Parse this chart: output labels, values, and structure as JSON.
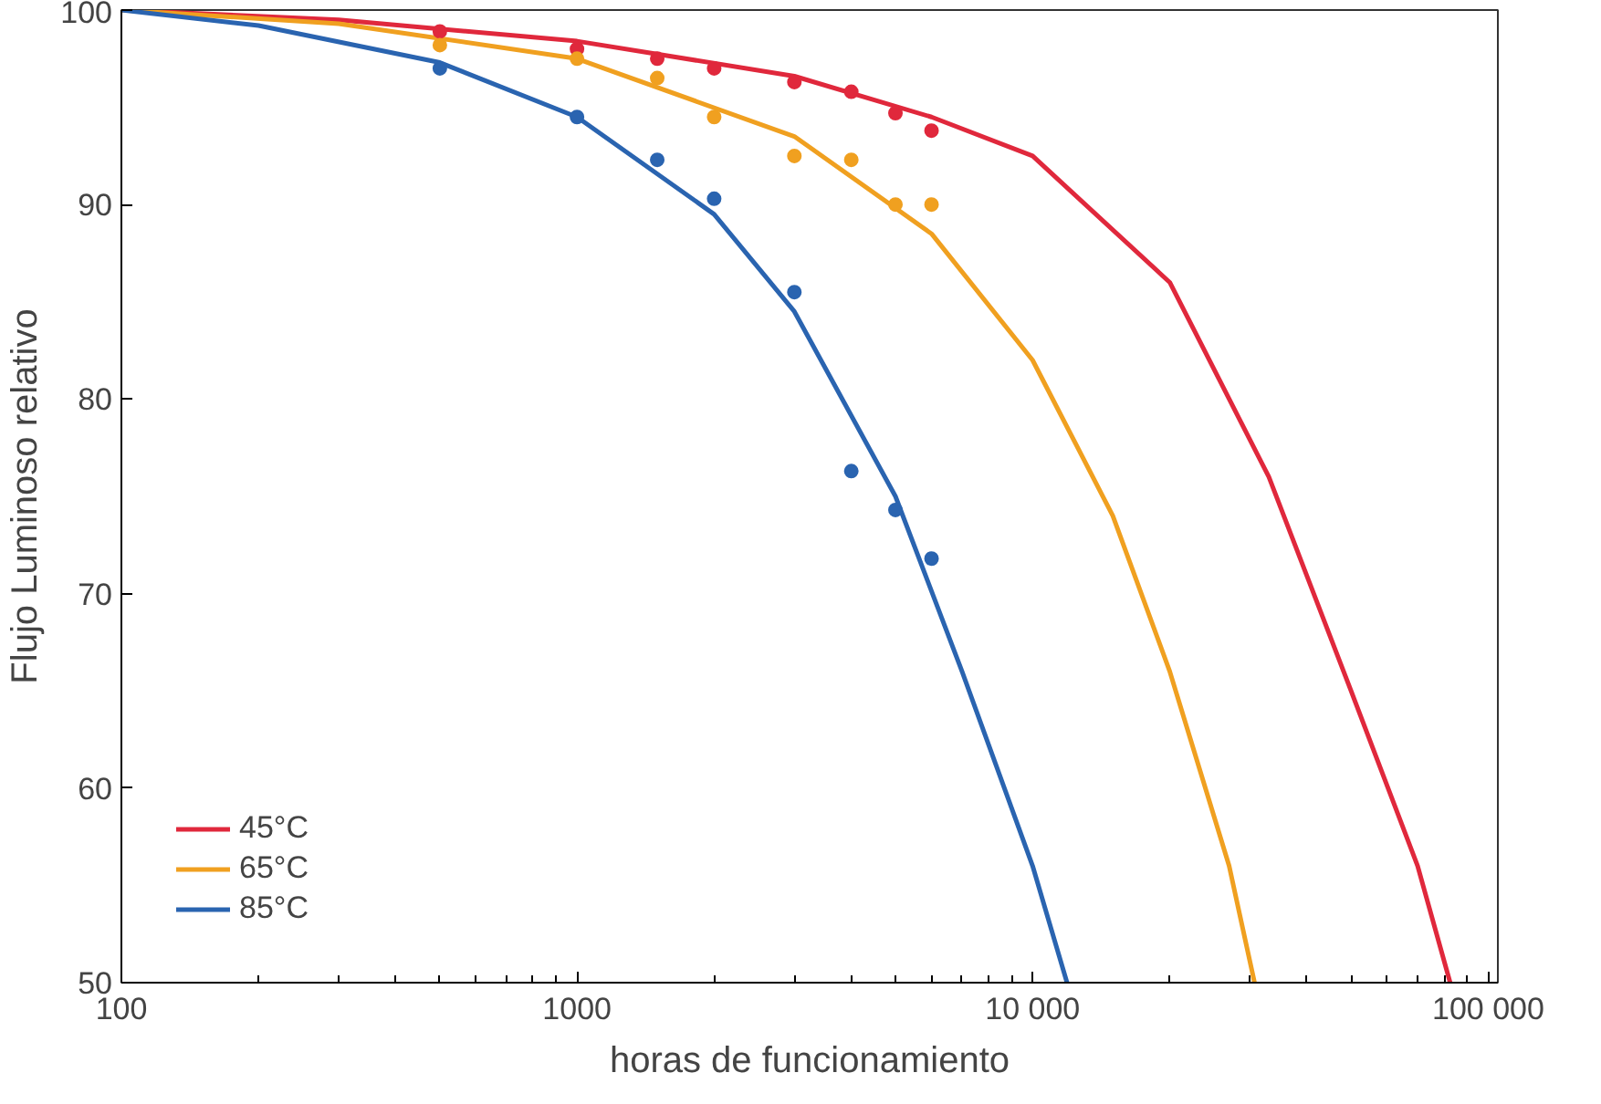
{
  "chart_data": {
    "type": "line",
    "xlabel": "horas de funcionamiento",
    "ylabel": "Flujo Luminoso relativo",
    "log": "x",
    "xlim": [
      100,
      105000
    ],
    "ylim": [
      50,
      100
    ],
    "xticks": [
      {
        "value": 100,
        "label": "100"
      },
      {
        "value": 1000,
        "label": "1000"
      },
      {
        "value": 10000,
        "label": "10 000"
      },
      {
        "value": 100000,
        "label": "100 000"
      }
    ],
    "yticks": [
      50,
      60,
      70,
      80,
      90,
      100
    ],
    "grid": false,
    "legend": "bottom left",
    "marker": "none",
    "series": [
      {
        "name": "45°C",
        "color": "#e0283c",
        "x": [
          100,
          300,
          1000,
          3000,
          6000,
          10000,
          20000,
          33000,
          50000,
          70000,
          82500
        ],
        "values": [
          100,
          99.5,
          98.4,
          96.6,
          94.5,
          92.5,
          86,
          76,
          65,
          56,
          50
        ]
      },
      {
        "name": "65°C",
        "color": "#f0a020",
        "x": [
          100,
          300,
          1000,
          3000,
          6000,
          10000,
          15000,
          20000,
          27000,
          30700
        ],
        "values": [
          100,
          99.3,
          97.5,
          93.5,
          88.5,
          82,
          74,
          66,
          56,
          50
        ]
      },
      {
        "name": "85°C",
        "color": "#2a64b0",
        "x": [
          100,
          200,
          500,
          1000,
          2000,
          3000,
          5000,
          7000,
          10000,
          11900
        ],
        "values": [
          100,
          99.2,
          97.3,
          94.5,
          89.5,
          84.5,
          75,
          66,
          56,
          50
        ]
      },
      {
        "color": "#e0283c",
        "type": "scatter",
        "marker": "circle",
        "x": [
          500,
          1000,
          1500,
          2000,
          3000,
          4000,
          5000,
          6000
        ],
        "values": [
          98.9,
          98,
          97.5,
          97,
          96.3,
          95.8,
          94.7,
          93.8
        ]
      },
      {
        "color": "#f0a020",
        "type": "scatter",
        "marker": "circle",
        "x": [
          500,
          1000,
          1500,
          2000,
          3000,
          4000,
          5000,
          6000
        ],
        "values": [
          98.2,
          97.5,
          96.5,
          94.5,
          92.5,
          92.3,
          90,
          90
        ]
      },
      {
        "color": "#2a64b0",
        "type": "scatter",
        "marker": "circle",
        "x": [
          500,
          1000,
          1500,
          2000,
          3000,
          4000,
          5000,
          6000
        ],
        "values": [
          97,
          94.5,
          92.3,
          90.3,
          85.5,
          76.3,
          74.3,
          71.8
        ]
      }
    ]
  }
}
